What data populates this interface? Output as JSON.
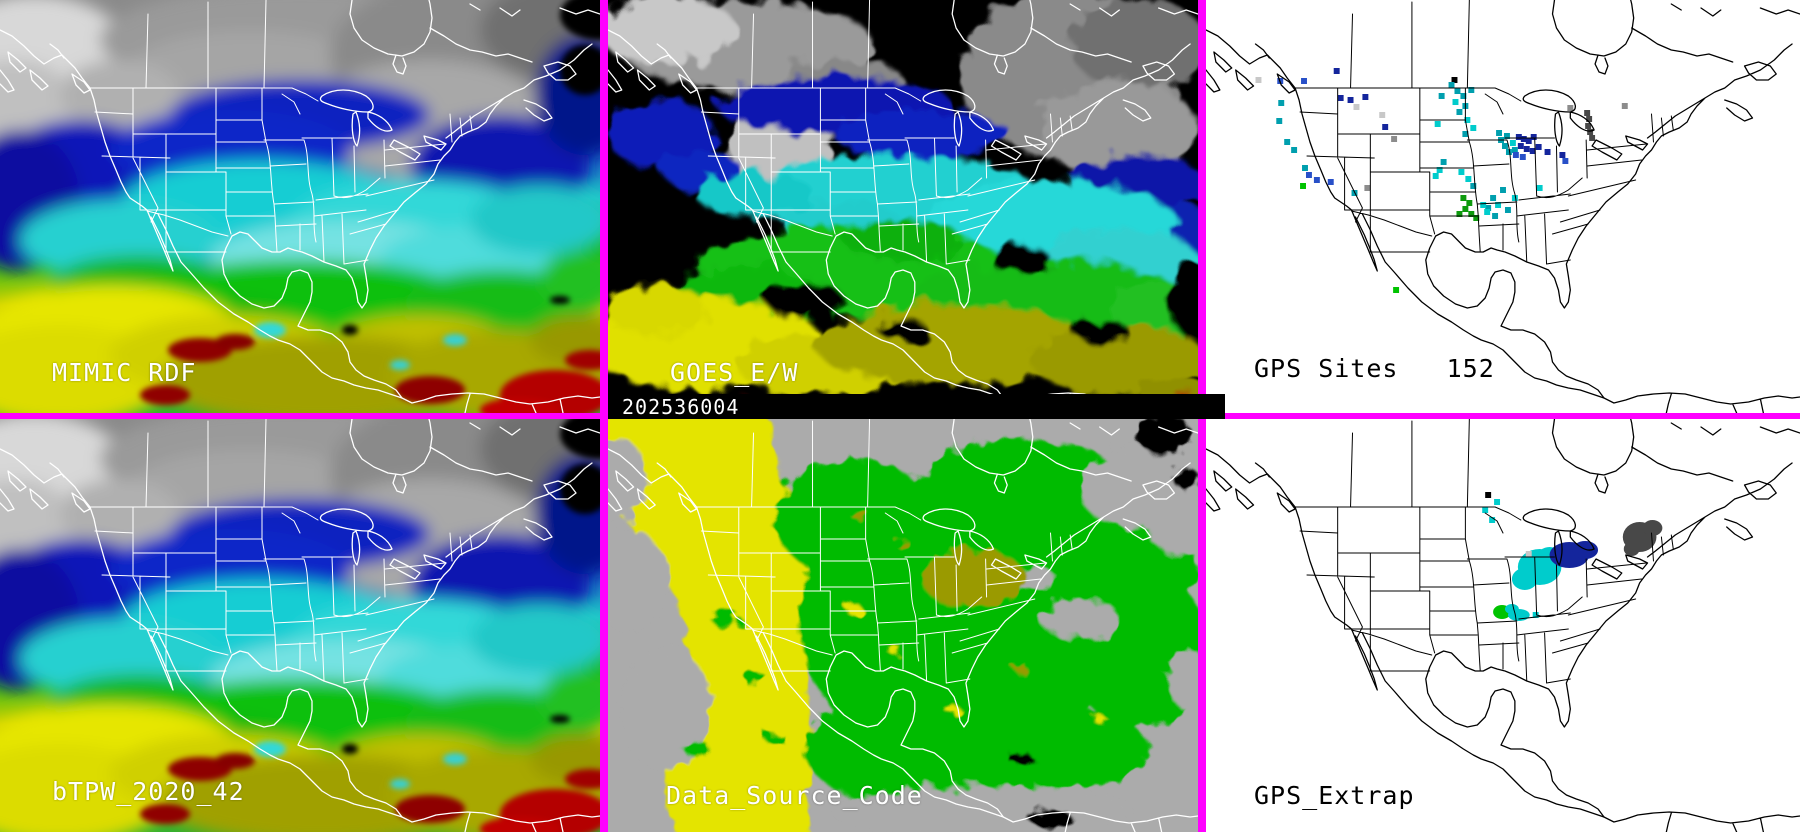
{
  "palette": {
    "border": "#ff00ff",
    "label_light": "#ffffff",
    "label_dark": "#000000",
    "timestamp_bg": "#000000",
    "timestamp_fg": "#ffffff"
  },
  "timestamp": "202536004",
  "panels": {
    "mimic": {
      "label": "MIMIC RDF"
    },
    "goes": {
      "label": "GOES_E/W"
    },
    "gps_sites": {
      "label": "GPS Sites   152",
      "count": "152"
    },
    "btpw": {
      "label": "bTPW_2020_42"
    },
    "dsc": {
      "label": "Data_Source_Code"
    },
    "gps_extrap": {
      "label": "GPS_Extrap"
    }
  },
  "dot_colors": {
    "n": "#14259c",
    "b": "#2850c8",
    "c": "#00cccc",
    "t": "#009fae",
    "g": "#0d9a0d",
    "e": "#00c300",
    "y": "#c8c8c8",
    "k": "#8c8c8c",
    "d": "#484848",
    "x": "#000000"
  },
  "gps_sites_points": [
    [
      53,
      80,
      "y"
    ],
    [
      75,
      81,
      "b"
    ],
    [
      76,
      103,
      "t"
    ],
    [
      74,
      121,
      "t"
    ],
    [
      99,
      81,
      "b"
    ],
    [
      82,
      142,
      "t"
    ],
    [
      89,
      150,
      "t"
    ],
    [
      100,
      168,
      "t"
    ],
    [
      104,
      175,
      "b"
    ],
    [
      112,
      180,
      "b"
    ],
    [
      126,
      182,
      "b"
    ],
    [
      98,
      186,
      "e"
    ],
    [
      150,
      193,
      "t"
    ],
    [
      163,
      188,
      "k"
    ],
    [
      132,
      71,
      "n"
    ],
    [
      136,
      98,
      "n"
    ],
    [
      146,
      100,
      "n"
    ],
    [
      161,
      97,
      "n"
    ],
    [
      152,
      107,
      "y"
    ],
    [
      178,
      115,
      "y"
    ],
    [
      181,
      127,
      "n"
    ],
    [
      190,
      139,
      "k"
    ],
    [
      251,
      80,
      "x"
    ],
    [
      248,
      85,
      "t"
    ],
    [
      254,
      91,
      "t"
    ],
    [
      260,
      96,
      "t"
    ],
    [
      268,
      90,
      "t"
    ],
    [
      252,
      102,
      "c"
    ],
    [
      262,
      106,
      "t"
    ],
    [
      256,
      112,
      "t"
    ],
    [
      264,
      120,
      "c"
    ],
    [
      270,
      128,
      "c"
    ],
    [
      238,
      96,
      "t"
    ],
    [
      234,
      124,
      "c"
    ],
    [
      262,
      134,
      "t"
    ],
    [
      240,
      162,
      "t"
    ],
    [
      236,
      170,
      "c"
    ],
    [
      232,
      176,
      "c"
    ],
    [
      258,
      172,
      "c"
    ],
    [
      265,
      179,
      "c"
    ],
    [
      270,
      186,
      "t"
    ],
    [
      296,
      133,
      "t"
    ],
    [
      298,
      140,
      "t"
    ],
    [
      302,
      146,
      "t"
    ],
    [
      306,
      152,
      "t"
    ],
    [
      304,
      136,
      "t"
    ],
    [
      310,
      143,
      "c"
    ],
    [
      312,
      150,
      "t"
    ],
    [
      316,
      137,
      "n"
    ],
    [
      321,
      139,
      "n"
    ],
    [
      326,
      141,
      "n"
    ],
    [
      331,
      137,
      "n"
    ],
    [
      318,
      146,
      "n"
    ],
    [
      324,
      149,
      "n"
    ],
    [
      330,
      151,
      "n"
    ],
    [
      336,
      147,
      "n"
    ],
    [
      313,
      155,
      "b"
    ],
    [
      320,
      157,
      "b"
    ],
    [
      345,
      152,
      "n"
    ],
    [
      360,
      155,
      "n"
    ],
    [
      363,
      161,
      "b"
    ],
    [
      337,
      188,
      "c"
    ],
    [
      300,
      190,
      "t"
    ],
    [
      290,
      198,
      "t"
    ],
    [
      295,
      205,
      "c"
    ],
    [
      285,
      208,
      "t"
    ],
    [
      305,
      210,
      "t"
    ],
    [
      312,
      198,
      "c"
    ],
    [
      260,
      198,
      "g"
    ],
    [
      266,
      203,
      "g"
    ],
    [
      262,
      209,
      "g"
    ],
    [
      268,
      214,
      "g"
    ],
    [
      273,
      218,
      "g"
    ],
    [
      256,
      214,
      "g"
    ],
    [
      280,
      205,
      "c"
    ],
    [
      284,
      212,
      "c"
    ],
    [
      292,
      216,
      "t"
    ],
    [
      385,
      113,
      "d"
    ],
    [
      387,
      119,
      "d"
    ],
    [
      386,
      126,
      "d"
    ],
    [
      388,
      132,
      "d"
    ],
    [
      390,
      138,
      "d"
    ],
    [
      368,
      108,
      "k"
    ],
    [
      423,
      106,
      "k"
    ],
    [
      192,
      290,
      "e"
    ]
  ],
  "gps_extrap_points": [
    [
      282,
      91,
      "c"
    ],
    [
      289,
      101,
      "c"
    ],
    [
      285,
      76,
      "x"
    ],
    [
      294,
      83,
      "c"
    ],
    [
      333,
      196,
      "c"
    ],
    [
      326,
      135,
      "y"
    ]
  ],
  "gps_extrap_patches": [
    [
      337,
      148,
      22,
      18,
      "c"
    ],
    [
      322,
      160,
      13,
      11,
      "c"
    ],
    [
      347,
      138,
      12,
      10,
      "c"
    ],
    [
      367,
      136,
      20,
      13,
      "n"
    ],
    [
      383,
      131,
      13,
      9,
      "n"
    ],
    [
      438,
      118,
      17,
      15,
      "d"
    ],
    [
      451,
      109,
      10,
      8,
      "d"
    ],
    [
      430,
      130,
      8,
      7,
      "d"
    ],
    [
      299,
      193,
      9,
      7,
      "e"
    ],
    [
      316,
      196,
      11,
      6,
      "c"
    ],
    [
      309,
      190,
      7,
      5,
      "c"
    ]
  ]
}
